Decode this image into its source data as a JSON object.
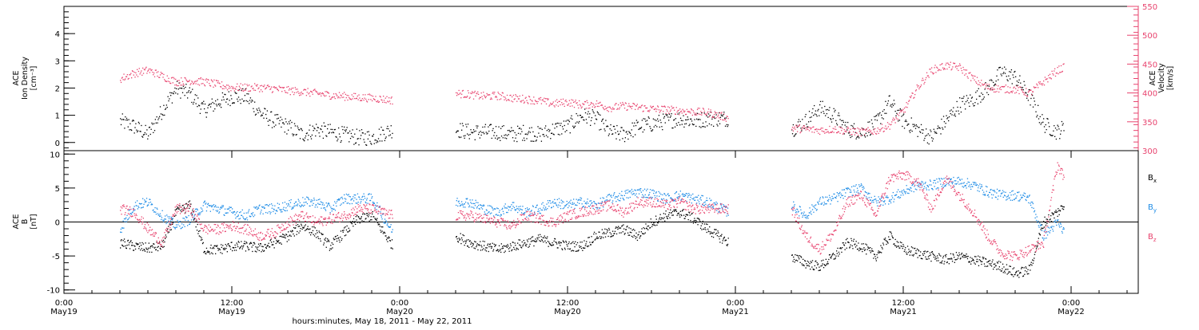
{
  "chart_data": [
    {
      "type": "scatter",
      "panel": "ion-density-velocity",
      "ylabel_left": [
        "ACE",
        "Ion Density",
        "[cm⁻³]"
      ],
      "ylabel_right": [
        "ACE",
        "Velocity",
        "[km/s]"
      ],
      "ylim_left": [
        -0.3,
        5.0
      ],
      "ylim_right": [
        300,
        550
      ],
      "yticks_left": [
        "0",
        "1",
        "2",
        "3",
        "4"
      ],
      "yticks_right": [
        "300",
        "350",
        "400",
        "450",
        "500",
        "550"
      ],
      "grid": false,
      "series": [
        {
          "axis": "left",
          "color": "#000000",
          "x": [
            4.0,
            5.0,
            6.0,
            7.0,
            8.0,
            9.0,
            10.0,
            11.0,
            12.0,
            13.0,
            14.0,
            15.0,
            16.0,
            17.0,
            18.0,
            19.0,
            20.0,
            21.0,
            22.0,
            23.5,
            28.0,
            29.0,
            30.0,
            31.0,
            32.0,
            33.0,
            34.0,
            35.0,
            36.0,
            37.0,
            38.0,
            39.0,
            40.0,
            41.0,
            42.0,
            43.0,
            44.0,
            45.0,
            46.0,
            47.5,
            52.0,
            53.0,
            54.0,
            55.0,
            56.0,
            57.0,
            58.0,
            59.0,
            60.0,
            61.0,
            62.0,
            63.0,
            64.0,
            65.0,
            66.0,
            67.0,
            68.0,
            69.0,
            70.0,
            71.0,
            71.5
          ],
          "values": [
            0.8,
            0.6,
            0.3,
            1.2,
            2.0,
            1.8,
            1.2,
            1.5,
            1.7,
            1.7,
            1.1,
            0.8,
            0.6,
            0.3,
            0.5,
            0.4,
            0.3,
            0.2,
            0.2,
            0.5,
            0.5,
            0.4,
            0.4,
            0.4,
            0.3,
            0.4,
            0.3,
            0.5,
            0.6,
            1.0,
            0.9,
            0.4,
            0.3,
            0.6,
            0.7,
            0.8,
            0.9,
            0.8,
            0.9,
            0.9,
            0.5,
            0.8,
            1.3,
            1.0,
            0.5,
            0.4,
            0.7,
            1.5,
            0.8,
            0.5,
            0.2,
            0.8,
            1.4,
            1.6,
            2.0,
            2.6,
            2.4,
            1.7,
            0.7,
            0.4,
            0.6
          ]
        },
        {
          "axis": "right",
          "color": "#e8436e",
          "x": [
            4.0,
            5.0,
            6.0,
            7.0,
            8.0,
            9.0,
            10.0,
            11.0,
            12.0,
            13.0,
            14.0,
            15.0,
            16.0,
            17.0,
            18.0,
            19.0,
            20.0,
            21.0,
            22.0,
            23.5,
            28.0,
            29.0,
            30.0,
            31.0,
            32.0,
            33.0,
            34.0,
            35.0,
            36.0,
            37.0,
            38.0,
            39.0,
            40.0,
            41.0,
            42.0,
            43.0,
            44.0,
            45.0,
            46.0,
            47.5,
            52.0,
            53.0,
            54.0,
            55.0,
            56.0,
            57.0,
            58.0,
            59.0,
            60.0,
            61.0,
            62.0,
            63.0,
            64.0,
            65.0,
            66.0,
            67.0,
            68.0,
            69.0,
            70.0,
            71.0,
            71.5
          ],
          "values": [
            425,
            435,
            440,
            430,
            420,
            422,
            420,
            415,
            410,
            410,
            410,
            408,
            405,
            403,
            400,
            397,
            395,
            393,
            392,
            388,
            400,
            398,
            395,
            396,
            392,
            390,
            387,
            382,
            385,
            380,
            382,
            375,
            378,
            376,
            373,
            372,
            370,
            368,
            367,
            357,
            340,
            338,
            336,
            338,
            335,
            333,
            335,
            345,
            370,
            410,
            440,
            448,
            445,
            425,
            410,
            408,
            407,
            400,
            420,
            440,
            445
          ]
        }
      ]
    },
    {
      "type": "scatter",
      "panel": "magnetic-field",
      "ylabel": [
        "ACE",
        "B",
        "[nT]"
      ],
      "ylim": [
        -10.5,
        10.5
      ],
      "yticks": [
        "-10",
        "-5",
        "0",
        "5",
        "10"
      ],
      "zero_line": 0,
      "grid": false,
      "legend": [
        {
          "label": "B",
          "sub": "x",
          "color": "#000000"
        },
        {
          "label": "B",
          "sub": "y",
          "color": "#1e8ce6"
        },
        {
          "label": "B",
          "sub": "z",
          "color": "#e8436e"
        }
      ],
      "series": [
        {
          "name": "Bx",
          "color": "#000000",
          "x": [
            4.0,
            5.0,
            6.0,
            7.0,
            8.0,
            9.0,
            10.0,
            11.0,
            12.0,
            13.0,
            14.0,
            15.0,
            16.0,
            17.0,
            18.0,
            19.0,
            20.0,
            21.0,
            22.0,
            23.5,
            28.0,
            29.0,
            30.0,
            31.0,
            32.0,
            33.0,
            34.0,
            35.0,
            36.0,
            37.0,
            38.0,
            39.0,
            40.0,
            41.0,
            42.0,
            43.0,
            44.0,
            45.0,
            46.0,
            47.5,
            52.0,
            53.0,
            54.0,
            55.0,
            56.0,
            57.0,
            58.0,
            59.0,
            60.0,
            61.0,
            62.0,
            63.0,
            64.0,
            65.0,
            66.0,
            67.0,
            68.0,
            69.0,
            70.0,
            71.0,
            71.5
          ],
          "values": [
            -3,
            -3.5,
            -3.8,
            -3.5,
            1.5,
            2.5,
            -4,
            -4,
            -3.5,
            -3.5,
            -3.8,
            -3,
            -2,
            -0.5,
            -1.5,
            -3.5,
            -1.5,
            0.5,
            1,
            -3.5,
            -2,
            -3,
            -3.5,
            -4,
            -3.5,
            -3,
            -2.5,
            -3,
            -3.5,
            -3.5,
            -2,
            -1.5,
            -1,
            -2,
            0,
            1,
            1.5,
            0.5,
            -1,
            -3,
            -5,
            -6,
            -6.5,
            -5,
            -3,
            -3.5,
            -5,
            -2,
            -4,
            -4.5,
            -5,
            -5.5,
            -5,
            -5.5,
            -6,
            -6.5,
            -7.5,
            -7,
            0,
            1.5,
            2.5
          ]
        },
        {
          "name": "By",
          "color": "#1e8ce6",
          "x": [
            4.0,
            5.0,
            6.0,
            7.0,
            8.0,
            9.0,
            10.0,
            11.0,
            12.0,
            13.0,
            14.0,
            15.0,
            16.0,
            17.0,
            18.0,
            19.0,
            20.0,
            21.0,
            22.0,
            23.5,
            28.0,
            29.0,
            30.0,
            31.0,
            32.0,
            33.0,
            34.0,
            35.0,
            36.0,
            37.0,
            38.0,
            39.0,
            40.0,
            41.0,
            42.0,
            43.0,
            44.0,
            45.0,
            46.0,
            47.5,
            52.0,
            53.0,
            54.0,
            55.0,
            56.0,
            57.0,
            58.0,
            59.0,
            60.0,
            61.0,
            62.0,
            63.0,
            64.0,
            65.0,
            66.0,
            67.0,
            68.0,
            69.0,
            70.0,
            71.0,
            71.5
          ],
          "values": [
            -1,
            2.5,
            3,
            1,
            -0.5,
            0.5,
            2.5,
            2,
            1.5,
            1,
            2,
            2,
            2.5,
            3,
            3,
            2,
            3.5,
            3.5,
            3.5,
            -1.5,
            3,
            3,
            2,
            1.5,
            2.5,
            1.5,
            2,
            3,
            2.5,
            3,
            2.5,
            3.5,
            4,
            4.5,
            4.2,
            3.5,
            4,
            3.5,
            3,
            1.5,
            2.5,
            1,
            3,
            3.5,
            4.5,
            5,
            3,
            3.5,
            4.5,
            5.5,
            5.5,
            6,
            6,
            5.5,
            4.5,
            4,
            4,
            3.5,
            -2,
            0,
            -1.5
          ]
        },
        {
          "name": "Bz",
          "color": "#e8436e",
          "x": [
            4.0,
            5.0,
            6.0,
            7.0,
            8.0,
            9.0,
            10.0,
            11.0,
            12.0,
            13.0,
            14.0,
            15.0,
            16.0,
            17.0,
            18.0,
            19.0,
            20.0,
            21.0,
            22.0,
            23.5,
            28.0,
            29.0,
            30.0,
            31.0,
            32.0,
            33.0,
            34.0,
            35.0,
            36.0,
            37.0,
            38.0,
            39.0,
            40.0,
            41.0,
            42.0,
            43.0,
            44.0,
            45.0,
            46.0,
            47.5,
            52.0,
            53.0,
            54.0,
            55.0,
            56.0,
            57.0,
            58.0,
            59.0,
            60.0,
            61.0,
            62.0,
            63.0,
            64.0,
            65.0,
            66.0,
            67.0,
            68.0,
            69.0,
            70.0,
            71.0,
            71.5
          ],
          "values": [
            2,
            1.5,
            -1,
            -3,
            2,
            2,
            -1,
            -1,
            -0.5,
            -1,
            -2,
            -1.5,
            0,
            1,
            0,
            0.5,
            1,
            2,
            2,
            1,
            1,
            1,
            0.5,
            0,
            -0.5,
            1,
            0.5,
            0,
            1,
            1.5,
            2,
            2.5,
            1.5,
            3,
            3,
            2.5,
            3,
            2,
            2,
            2,
            2,
            -2,
            -4,
            -1.5,
            3,
            4,
            1,
            6.5,
            7,
            6,
            2,
            6.5,
            4,
            1.5,
            -2,
            -4.5,
            -5,
            -4,
            -3,
            8.5,
            6.5
          ]
        }
      ]
    }
  ],
  "x_axis": {
    "ticks": [
      {
        "time": "0:00",
        "date": "May19"
      },
      {
        "time": "12:00",
        "date": "May19"
      },
      {
        "time": "0:00",
        "date": "May20"
      },
      {
        "time": "12:00",
        "date": "May20"
      },
      {
        "time": "0:00",
        "date": "May21"
      },
      {
        "time": "12:00",
        "date": "May21"
      },
      {
        "time": "0:00",
        "date": "May22"
      }
    ],
    "xlabel": "hours:minutes, May 18, 2011 - May 22, 2011"
  }
}
